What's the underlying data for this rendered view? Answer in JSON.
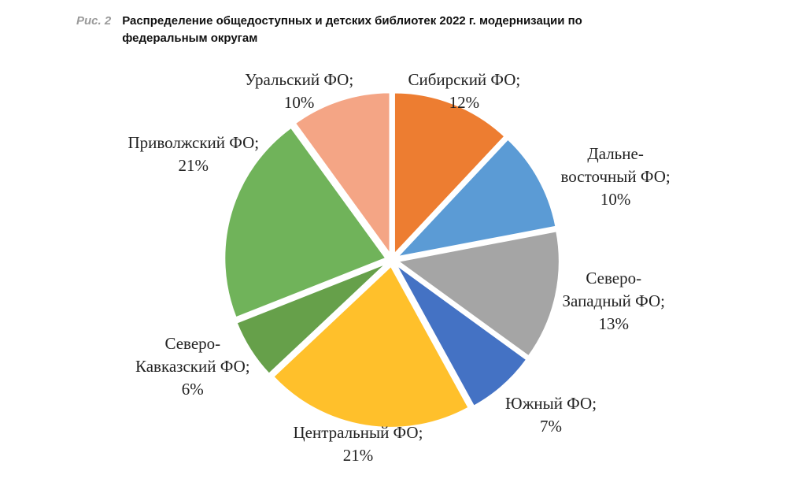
{
  "figure": {
    "number": "Рис. 2",
    "title": "Распределение общедоступных и детских библиотек 2022 г. модернизации по федеральным округам"
  },
  "chart_data": {
    "type": "pie",
    "title": "Распределение общедоступных и детских библиотек 2022 г. модернизации по федеральным округам",
    "unit": "%",
    "slices": [
      {
        "name": "Сибирский ФО",
        "value": 12,
        "label_lines": [
          "Сибирский ФО;",
          "12%"
        ],
        "color": "#ED7D31"
      },
      {
        "name": "Дальневосточный ФО",
        "value": 10,
        "label_lines": [
          "Дальне-",
          "восточный ФО;",
          "10%"
        ],
        "color": "#5B9BD5"
      },
      {
        "name": "Северо-Западный ФО",
        "value": 13,
        "label_lines": [
          "Северо-",
          "Западный ФО;",
          "13%"
        ],
        "color": "#A5A5A5"
      },
      {
        "name": "Южный ФО",
        "value": 7,
        "label_lines": [
          "Южный ФО;",
          "7%"
        ],
        "color": "#4472C4"
      },
      {
        "name": "Центральный ФО",
        "value": 21,
        "label_lines": [
          "Центральный ФО;",
          "21%"
        ],
        "color": "#FFC02B"
      },
      {
        "name": "Северо-Кавказский ФО",
        "value": 6,
        "label_lines": [
          "Северо-",
          "Кавказский ФО;",
          "6%"
        ],
        "color": "#66A04A"
      },
      {
        "name": "Приволжский ФО",
        "value": 21,
        "label_lines": [
          "Приволжский ФО;",
          "21%"
        ],
        "color": "#70B35A"
      },
      {
        "name": "Уральский ФО",
        "value": 10,
        "label_lines": [
          "Уральский ФО;",
          "10%"
        ],
        "color": "#F4A585"
      }
    ]
  }
}
